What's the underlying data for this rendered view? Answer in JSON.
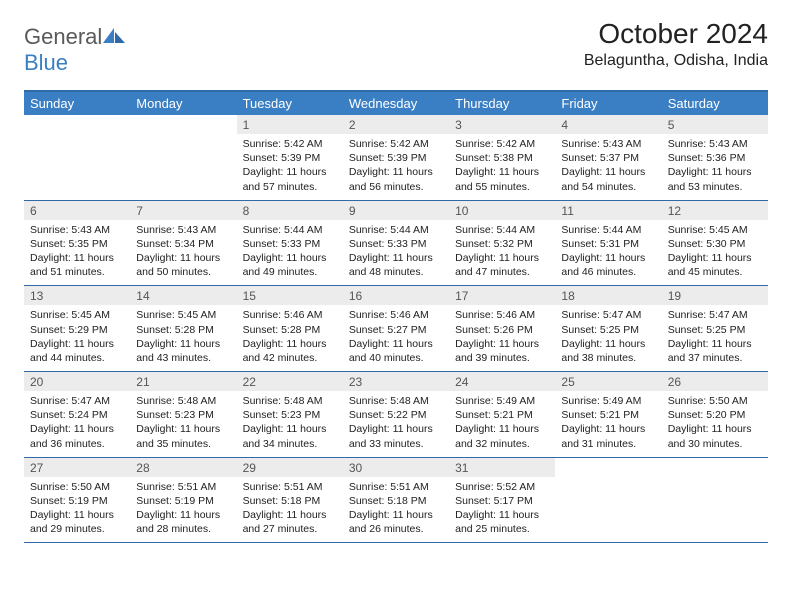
{
  "logo": {
    "text1": "General",
    "text2": "Blue"
  },
  "title": "October 2024",
  "location": "Belaguntha, Odisha, India",
  "colors": {
    "header_bg": "#3a7fc4",
    "header_border": "#2e6aa8",
    "daynum_bg": "#ececec",
    "text": "#222222",
    "logo_gray": "#5a5a5a"
  },
  "weekdays": [
    "Sunday",
    "Monday",
    "Tuesday",
    "Wednesday",
    "Thursday",
    "Friday",
    "Saturday"
  ],
  "weeks": [
    [
      null,
      null,
      {
        "d": "1",
        "sr": "5:42 AM",
        "ss": "5:39 PM",
        "dl": "11 hours and 57 minutes."
      },
      {
        "d": "2",
        "sr": "5:42 AM",
        "ss": "5:39 PM",
        "dl": "11 hours and 56 minutes."
      },
      {
        "d": "3",
        "sr": "5:42 AM",
        "ss": "5:38 PM",
        "dl": "11 hours and 55 minutes."
      },
      {
        "d": "4",
        "sr": "5:43 AM",
        "ss": "5:37 PM",
        "dl": "11 hours and 54 minutes."
      },
      {
        "d": "5",
        "sr": "5:43 AM",
        "ss": "5:36 PM",
        "dl": "11 hours and 53 minutes."
      }
    ],
    [
      {
        "d": "6",
        "sr": "5:43 AM",
        "ss": "5:35 PM",
        "dl": "11 hours and 51 minutes."
      },
      {
        "d": "7",
        "sr": "5:43 AM",
        "ss": "5:34 PM",
        "dl": "11 hours and 50 minutes."
      },
      {
        "d": "8",
        "sr": "5:44 AM",
        "ss": "5:33 PM",
        "dl": "11 hours and 49 minutes."
      },
      {
        "d": "9",
        "sr": "5:44 AM",
        "ss": "5:33 PM",
        "dl": "11 hours and 48 minutes."
      },
      {
        "d": "10",
        "sr": "5:44 AM",
        "ss": "5:32 PM",
        "dl": "11 hours and 47 minutes."
      },
      {
        "d": "11",
        "sr": "5:44 AM",
        "ss": "5:31 PM",
        "dl": "11 hours and 46 minutes."
      },
      {
        "d": "12",
        "sr": "5:45 AM",
        "ss": "5:30 PM",
        "dl": "11 hours and 45 minutes."
      }
    ],
    [
      {
        "d": "13",
        "sr": "5:45 AM",
        "ss": "5:29 PM",
        "dl": "11 hours and 44 minutes."
      },
      {
        "d": "14",
        "sr": "5:45 AM",
        "ss": "5:28 PM",
        "dl": "11 hours and 43 minutes."
      },
      {
        "d": "15",
        "sr": "5:46 AM",
        "ss": "5:28 PM",
        "dl": "11 hours and 42 minutes."
      },
      {
        "d": "16",
        "sr": "5:46 AM",
        "ss": "5:27 PM",
        "dl": "11 hours and 40 minutes."
      },
      {
        "d": "17",
        "sr": "5:46 AM",
        "ss": "5:26 PM",
        "dl": "11 hours and 39 minutes."
      },
      {
        "d": "18",
        "sr": "5:47 AM",
        "ss": "5:25 PM",
        "dl": "11 hours and 38 minutes."
      },
      {
        "d": "19",
        "sr": "5:47 AM",
        "ss": "5:25 PM",
        "dl": "11 hours and 37 minutes."
      }
    ],
    [
      {
        "d": "20",
        "sr": "5:47 AM",
        "ss": "5:24 PM",
        "dl": "11 hours and 36 minutes."
      },
      {
        "d": "21",
        "sr": "5:48 AM",
        "ss": "5:23 PM",
        "dl": "11 hours and 35 minutes."
      },
      {
        "d": "22",
        "sr": "5:48 AM",
        "ss": "5:23 PM",
        "dl": "11 hours and 34 minutes."
      },
      {
        "d": "23",
        "sr": "5:48 AM",
        "ss": "5:22 PM",
        "dl": "11 hours and 33 minutes."
      },
      {
        "d": "24",
        "sr": "5:49 AM",
        "ss": "5:21 PM",
        "dl": "11 hours and 32 minutes."
      },
      {
        "d": "25",
        "sr": "5:49 AM",
        "ss": "5:21 PM",
        "dl": "11 hours and 31 minutes."
      },
      {
        "d": "26",
        "sr": "5:50 AM",
        "ss": "5:20 PM",
        "dl": "11 hours and 30 minutes."
      }
    ],
    [
      {
        "d": "27",
        "sr": "5:50 AM",
        "ss": "5:19 PM",
        "dl": "11 hours and 29 minutes."
      },
      {
        "d": "28",
        "sr": "5:51 AM",
        "ss": "5:19 PM",
        "dl": "11 hours and 28 minutes."
      },
      {
        "d": "29",
        "sr": "5:51 AM",
        "ss": "5:18 PM",
        "dl": "11 hours and 27 minutes."
      },
      {
        "d": "30",
        "sr": "5:51 AM",
        "ss": "5:18 PM",
        "dl": "11 hours and 26 minutes."
      },
      {
        "d": "31",
        "sr": "5:52 AM",
        "ss": "5:17 PM",
        "dl": "11 hours and 25 minutes."
      },
      null,
      null
    ]
  ]
}
